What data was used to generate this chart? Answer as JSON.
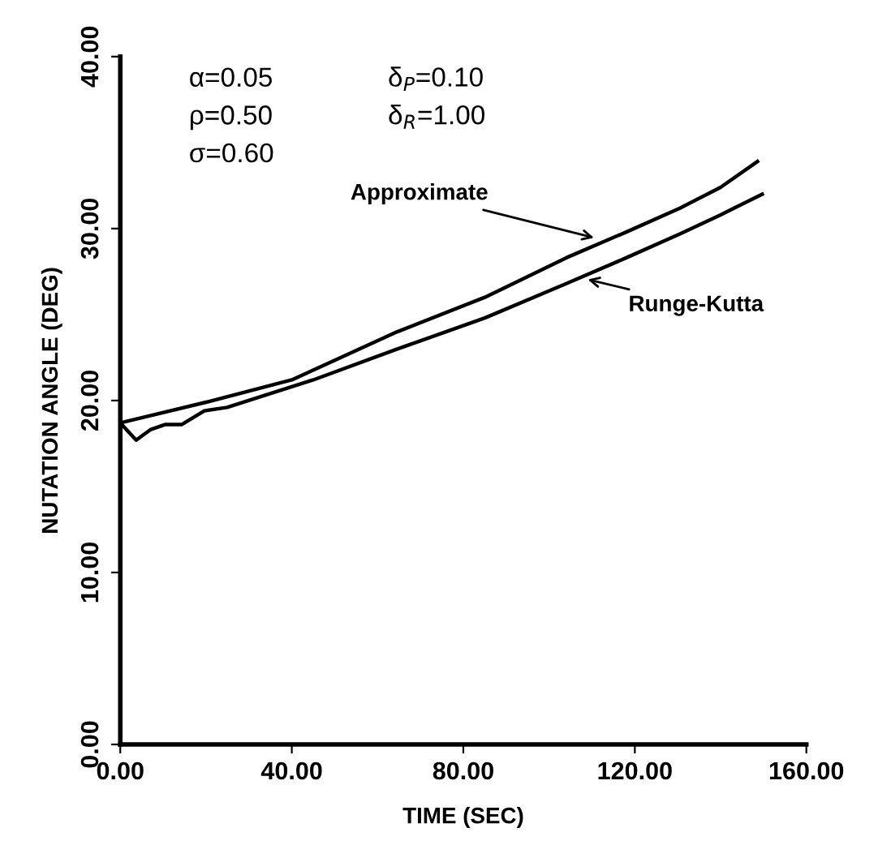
{
  "chart_data": {
    "type": "line",
    "xlabel": "TIME (SEC)",
    "ylabel": "NUTATION ANGLE (DEG)",
    "xlim": [
      0,
      160
    ],
    "ylim": [
      0,
      40
    ],
    "xticks": [
      {
        "value": 0,
        "label": "0.00"
      },
      {
        "value": 40,
        "label": "40.00"
      },
      {
        "value": 80,
        "label": "80.00"
      },
      {
        "value": 120,
        "label": "120.00"
      },
      {
        "value": 160,
        "label": "160.00"
      }
    ],
    "yticks": [
      {
        "value": 0,
        "label": "0.00"
      },
      {
        "value": 10,
        "label": "10.00"
      },
      {
        "value": 20,
        "label": "20.00"
      },
      {
        "value": 30,
        "label": "30.00"
      },
      {
        "value": 40,
        "label": "40.00"
      }
    ],
    "grid": false,
    "legend": false,
    "marker": "none",
    "line_style": "solid",
    "series": [
      {
        "color": "#000000",
        "x": [
          0,
          20,
          40,
          64.6,
          85,
          104,
          118,
          130.6,
          140,
          148.6
        ],
        "values": [
          18.7,
          19.9,
          21.2,
          24.0,
          26.0,
          28.3,
          29.8,
          31.2,
          32.4,
          33.9
        ]
      },
      {
        "color": "#000000",
        "x": [
          0,
          3.7,
          7,
          10.4,
          14.3,
          19.6,
          24.9,
          45,
          64.6,
          85,
          104,
          118,
          130.6,
          140,
          149.7
        ],
        "values": [
          18.7,
          17.7,
          18.3,
          18.6,
          18.6,
          19.4,
          19.6,
          21.2,
          23.0,
          24.8,
          26.8,
          28.3,
          29.7,
          30.8,
          32.0
        ]
      }
    ],
    "annotations": [
      "α=0.05",
      "ρ=0.50",
      "σ=0.60",
      "δ$_{P}$=0.10",
      "δ$_{R}$=1.00",
      {
        "text": "Approximate",
        "x": 111.5,
        "y": 29.4
      },
      {
        "text": "Runge-Kutta",
        "x": 108,
        "y": 27.1
      }
    ]
  }
}
